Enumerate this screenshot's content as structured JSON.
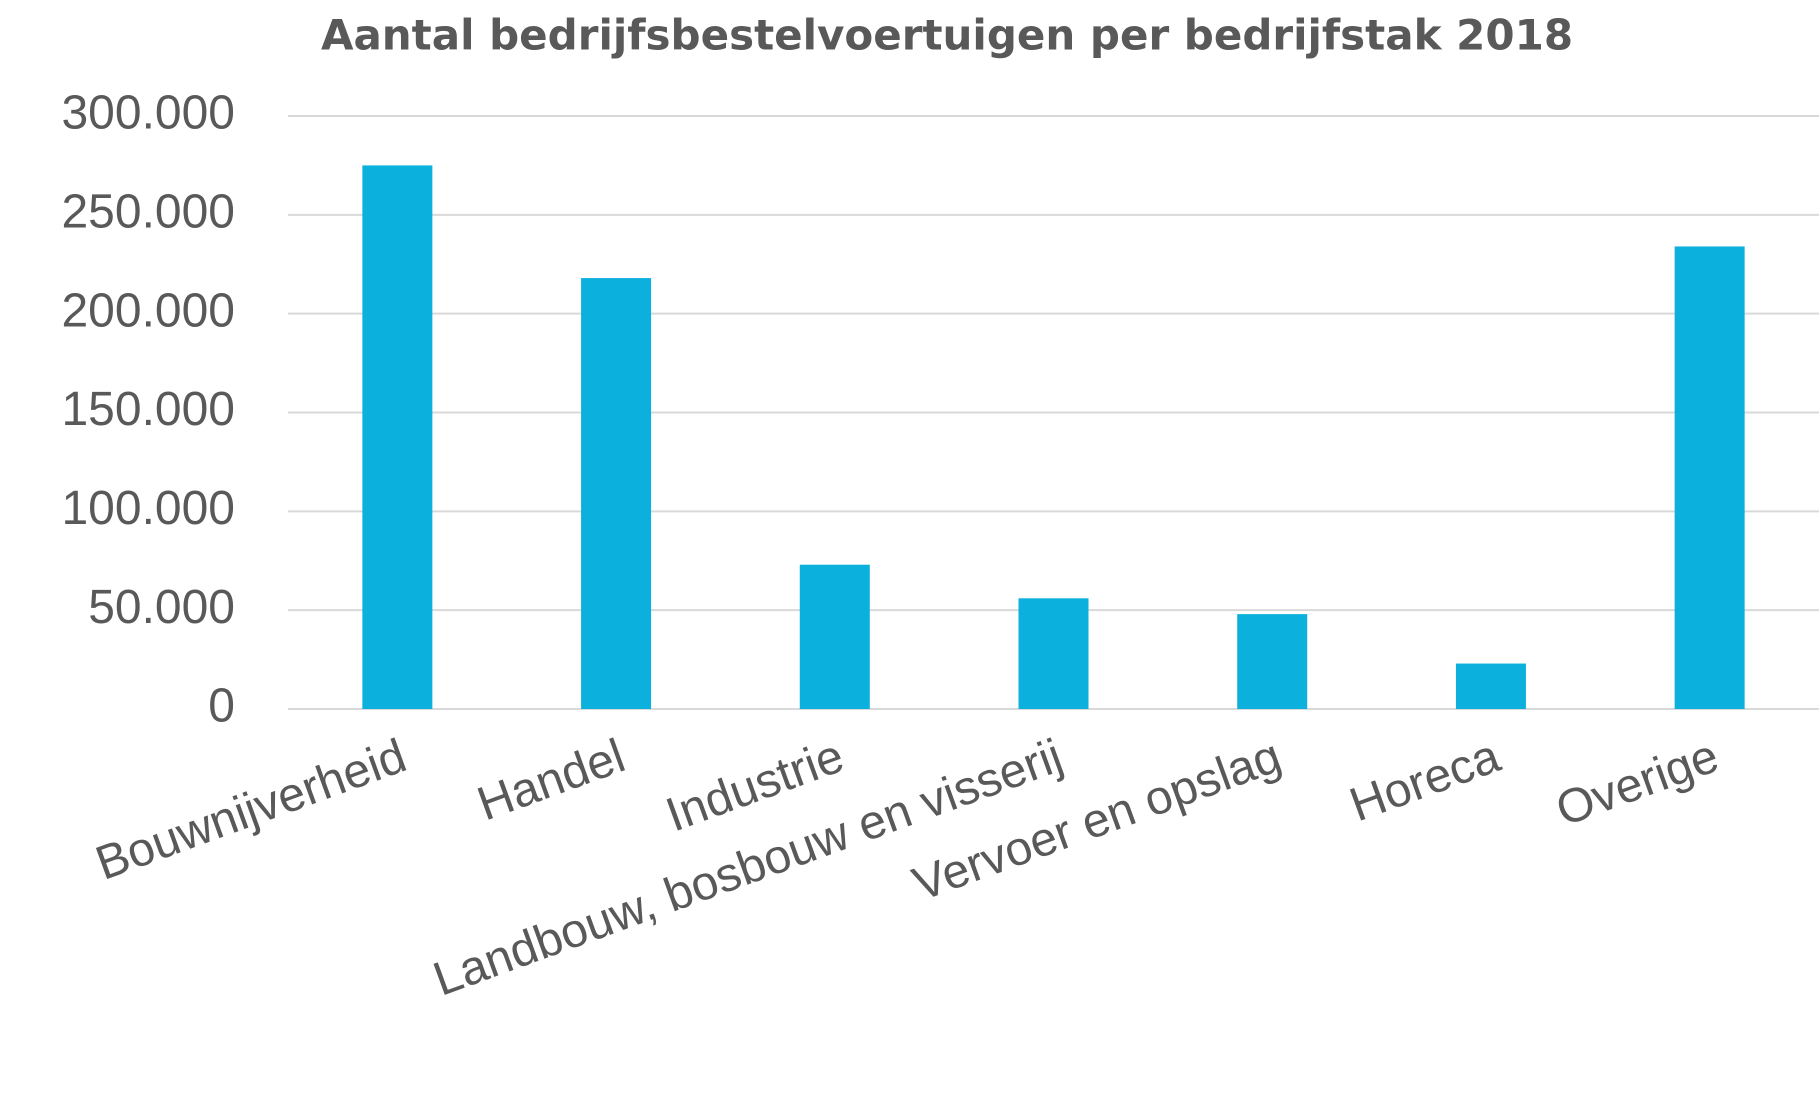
{
  "chart_data": {
    "type": "bar",
    "title": "Aantal bedrijfsbestelvoertuigen per bedrijfstak 2018",
    "categories": [
      "Bouwnijverheid",
      "Handel",
      "Industrie",
      "Landbouw, bosbouw en visserij",
      "Vervoer en opslag",
      "Horeca",
      "Overige"
    ],
    "values": [
      275000,
      218000,
      73000,
      56000,
      48000,
      23000,
      234000
    ],
    "color": "#0bb0dc",
    "ylim": [
      0,
      300000
    ],
    "yticks": [
      0,
      {
        "value": 50000,
        "label": "50.000"
      },
      {
        "value": 100000,
        "label": "100.000"
      },
      {
        "value": 150000,
        "label": "150.000"
      },
      {
        "value": 200000,
        "label": "200.000"
      },
      {
        "value": 250000,
        "label": "250.000"
      },
      {
        "value": 300000,
        "label": "300.000"
      }
    ],
    "grid": true
  }
}
